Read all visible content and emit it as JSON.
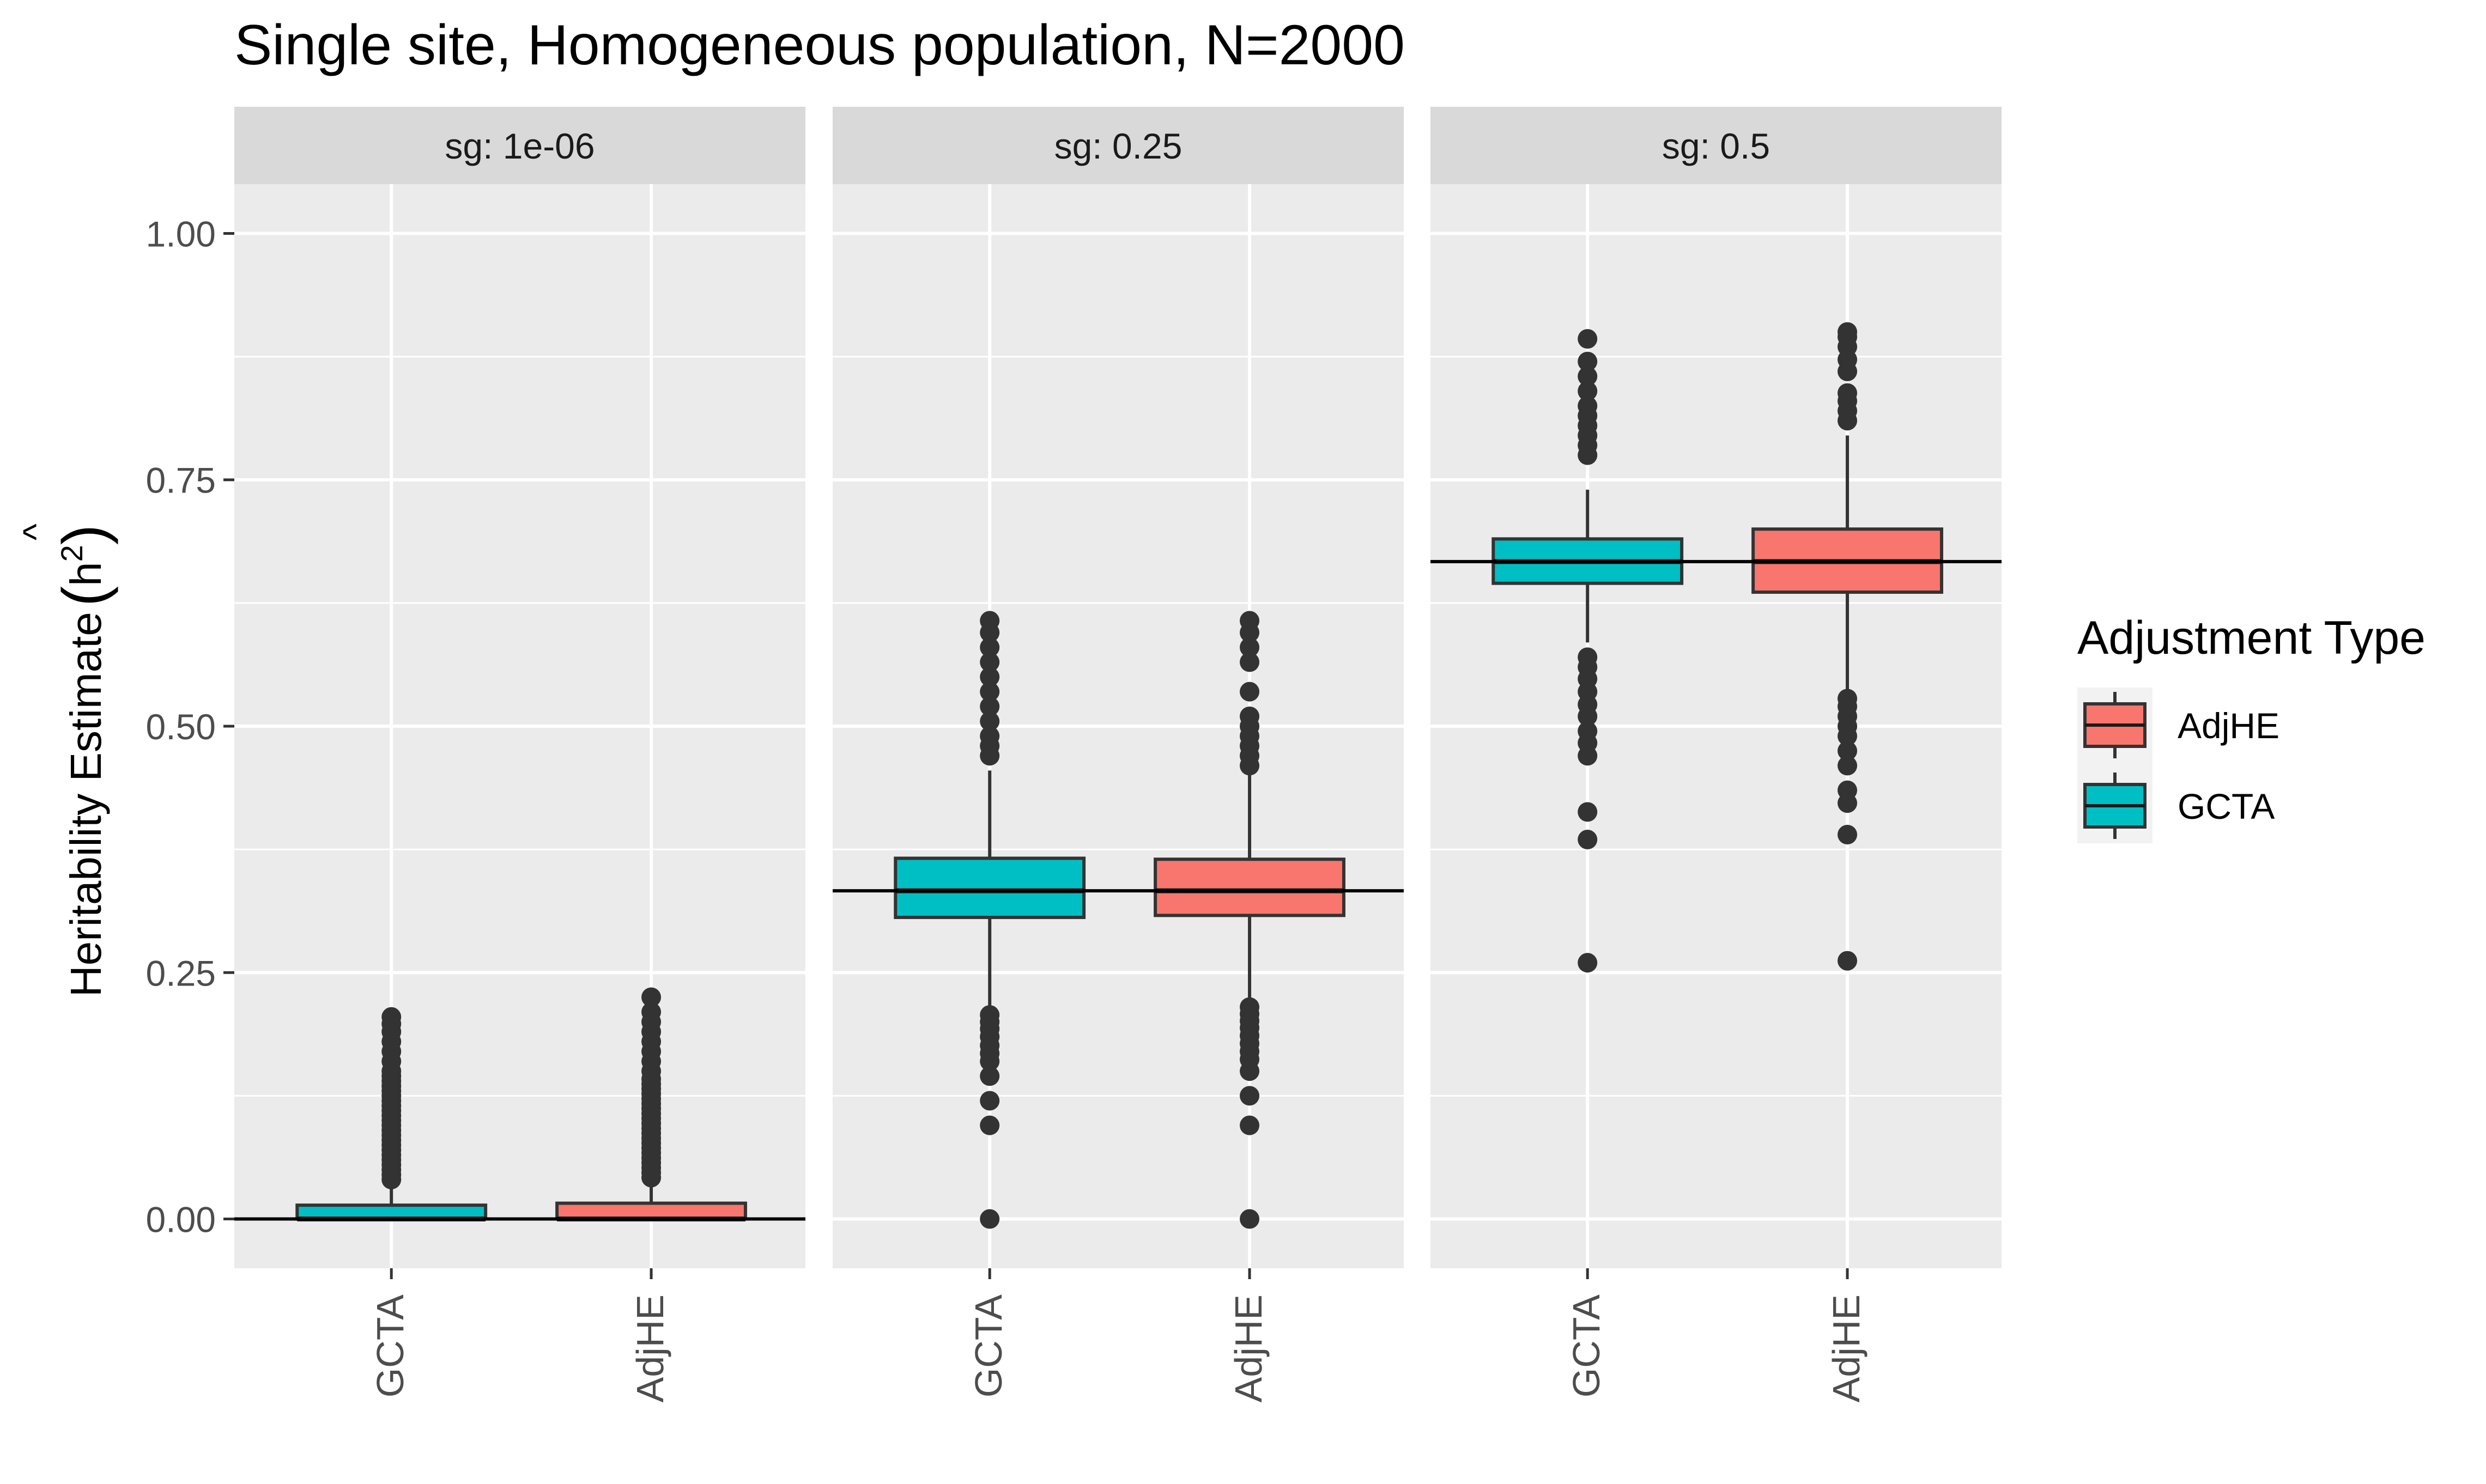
{
  "title": "Single site, Homogeneous population, N=2000",
  "ylabel": "Heritability Estimate",
  "ylabel_symbol": "h",
  "ylabel_exponent": "2",
  "ylabel_hat": "^",
  "legend": {
    "title": "Adjustment Type",
    "items": [
      {
        "label": "AdjHE",
        "color": "#F8766D"
      },
      {
        "label": "GCTA",
        "color": "#00BFC4"
      }
    ]
  },
  "chart_data": {
    "type": "boxplot",
    "title": "Single site, Homogeneous population, N=2000",
    "ylabel": "Heritability Estimate (h^2 hat)",
    "ylim": [
      -0.05,
      1.05
    ],
    "yticks": [
      0.0,
      0.25,
      0.5,
      0.75,
      1.0
    ],
    "ytick_labels": [
      "0.00",
      "0.25",
      "0.50",
      "0.75",
      "1.00"
    ],
    "categories": [
      "GCTA",
      "AdjHE"
    ],
    "grid": true,
    "legend_position": "right",
    "colors": {
      "GCTA": "#00BFC4",
      "AdjHE": "#F8766D"
    },
    "panels": [
      {
        "label": "sg: 1e-06",
        "reference": 0.0,
        "boxes": [
          {
            "category": "GCTA",
            "q1": 0.0,
            "median": 0.0,
            "q3": 0.014,
            "whisker_low": 0.0,
            "whisker_high": 0.035,
            "outliers": [
              0.04,
              0.045,
              0.05,
              0.055,
              0.06,
              0.065,
              0.07,
              0.075,
              0.08,
              0.085,
              0.09,
              0.095,
              0.1,
              0.105,
              0.11,
              0.115,
              0.12,
              0.125,
              0.13,
              0.135,
              0.14,
              0.145,
              0.15,
              0.16,
              0.17,
              0.18,
              0.19,
              0.198,
              0.205
            ]
          },
          {
            "category": "AdjHE",
            "q1": 0.0,
            "median": 0.0,
            "q3": 0.016,
            "whisker_low": 0.0,
            "whisker_high": 0.038,
            "outliers": [
              0.042,
              0.047,
              0.052,
              0.057,
              0.062,
              0.067,
              0.072,
              0.077,
              0.082,
              0.087,
              0.092,
              0.097,
              0.102,
              0.107,
              0.112,
              0.117,
              0.122,
              0.127,
              0.132,
              0.137,
              0.142,
              0.15,
              0.16,
              0.17,
              0.18,
              0.19,
              0.2,
              0.21,
              0.225
            ]
          }
        ]
      },
      {
        "label": "sg: 0.25",
        "reference": 0.333,
        "boxes": [
          {
            "category": "GCTA",
            "q1": 0.306,
            "median": 0.333,
            "q3": 0.366,
            "whisker_low": 0.215,
            "whisker_high": 0.455,
            "outliers": [
              0.0,
              0.095,
              0.12,
              0.145,
              0.16,
              0.168,
              0.176,
              0.185,
              0.193,
              0.2,
              0.207,
              0.47,
              0.48,
              0.49,
              0.505,
              0.52,
              0.535,
              0.55,
              0.565,
              0.58,
              0.595,
              0.607
            ]
          },
          {
            "category": "AdjHE",
            "q1": 0.308,
            "median": 0.333,
            "q3": 0.365,
            "whisker_low": 0.217,
            "whisker_high": 0.452,
            "outliers": [
              0.0,
              0.095,
              0.125,
              0.15,
              0.162,
              0.17,
              0.178,
              0.186,
              0.194,
              0.201,
              0.208,
              0.215,
              0.46,
              0.47,
              0.48,
              0.49,
              0.5,
              0.51,
              0.535,
              0.565,
              0.58,
              0.595,
              0.607
            ]
          }
        ]
      },
      {
        "label": "sg: 0.5",
        "reference": 0.667,
        "boxes": [
          {
            "category": "GCTA",
            "q1": 0.645,
            "median": 0.667,
            "q3": 0.69,
            "whisker_low": 0.585,
            "whisker_high": 0.74,
            "outliers": [
              0.26,
              0.385,
              0.413,
              0.47,
              0.483,
              0.495,
              0.51,
              0.522,
              0.535,
              0.548,
              0.56,
              0.57,
              0.775,
              0.785,
              0.795,
              0.805,
              0.815,
              0.825,
              0.84,
              0.855,
              0.87,
              0.893
            ]
          },
          {
            "category": "AdjHE",
            "q1": 0.636,
            "median": 0.667,
            "q3": 0.7,
            "whisker_low": 0.535,
            "whisker_high": 0.795,
            "outliers": [
              0.262,
              0.39,
              0.422,
              0.435,
              0.46,
              0.475,
              0.49,
              0.5,
              0.51,
              0.52,
              0.528,
              0.81,
              0.82,
              0.83,
              0.838,
              0.86,
              0.872,
              0.885,
              0.895,
              0.9
            ]
          }
        ]
      }
    ]
  }
}
